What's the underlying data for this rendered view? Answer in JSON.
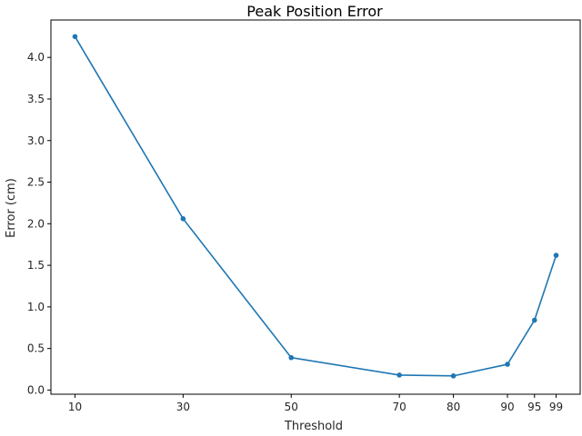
{
  "chart_data": {
    "type": "line",
    "title": "Peak Position Error",
    "xlabel": "Threshold",
    "ylabel": "Error (cm)",
    "x": [
      10,
      30,
      50,
      70,
      80,
      90,
      95,
      99
    ],
    "xticks": [
      "10",
      "30",
      "50",
      "70",
      "80",
      "90",
      "95",
      "99"
    ],
    "yticks": [
      "0.0",
      "0.5",
      "1.0",
      "1.5",
      "2.0",
      "2.5",
      "3.0",
      "3.5",
      "4.0"
    ],
    "ylim": [
      -0.05,
      4.45
    ],
    "xlim": [
      5.55,
      103.45
    ],
    "grid": false,
    "legend": false,
    "series": [
      {
        "values": [
          4.25,
          2.06,
          0.39,
          0.18,
          0.17,
          0.31,
          0.84,
          1.62
        ],
        "color": "#1f77b4",
        "marker": "circle"
      }
    ]
  }
}
